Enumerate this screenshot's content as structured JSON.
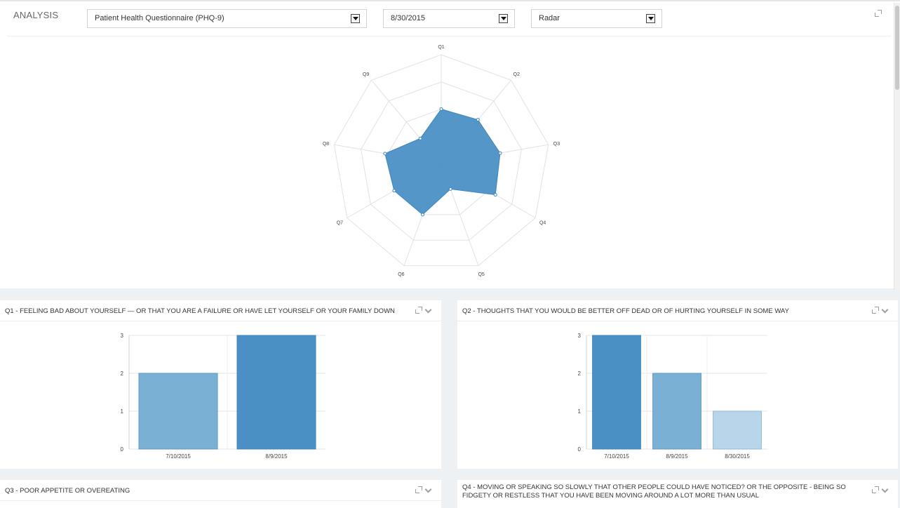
{
  "toolbar": {
    "title": "ANALYSIS",
    "questionnaire_value": "Patient Health Questionnaire (PHQ-9)",
    "date_value": "8/30/2015",
    "chart_type_value": "Radar"
  },
  "colors": {
    "accent": "#4a90c4",
    "bar_mid": "#7ab0d4",
    "bar_light": "#b9d5ea"
  },
  "chart_data": [
    {
      "type": "radar",
      "categories": [
        "Q1",
        "Q2",
        "Q3",
        "Q4",
        "Q5",
        "Q6",
        "Q7",
        "Q8",
        "Q9"
      ],
      "values": [
        2.0,
        2.1,
        2.2,
        2.3,
        1.0,
        2.0,
        2.0,
        2.1,
        1.2
      ],
      "range": [
        0,
        4
      ]
    },
    {
      "type": "bar",
      "title": "Q1 - FEELING BAD ABOUT YOURSELF — OR THAT YOU ARE A FAILURE OR HAVE LET YOURSELF OR YOUR FAMILY DOWN",
      "categories": [
        "7/10/2015",
        "8/9/2015"
      ],
      "values": [
        2,
        3
      ],
      "ylim": [
        0,
        3
      ],
      "yticks": [
        "0",
        "1",
        "2",
        "3"
      ]
    },
    {
      "type": "bar",
      "title": "Q2 - THOUGHTS THAT YOU WOULD BE BETTER OFF DEAD OR OF HURTING YOURSELF IN SOME WAY",
      "categories": [
        "7/10/2015",
        "8/9/2015",
        "8/30/2015"
      ],
      "values": [
        3,
        2,
        1
      ],
      "ylim": [
        0,
        3
      ],
      "yticks": [
        "0",
        "1",
        "2",
        "3"
      ]
    }
  ],
  "cards": {
    "q3_title": "Q3 - POOR APPETITE OR OVEREATING",
    "q4_title": "Q4 - MOVING OR SPEAKING SO SLOWLY THAT OTHER PEOPLE COULD HAVE NOTICED? OR THE OPPOSITE - BEING SO FIDGETY OR RESTLESS THAT YOU HAVE BEEN MOVING AROUND A LOT MORE THAN USUAL"
  }
}
